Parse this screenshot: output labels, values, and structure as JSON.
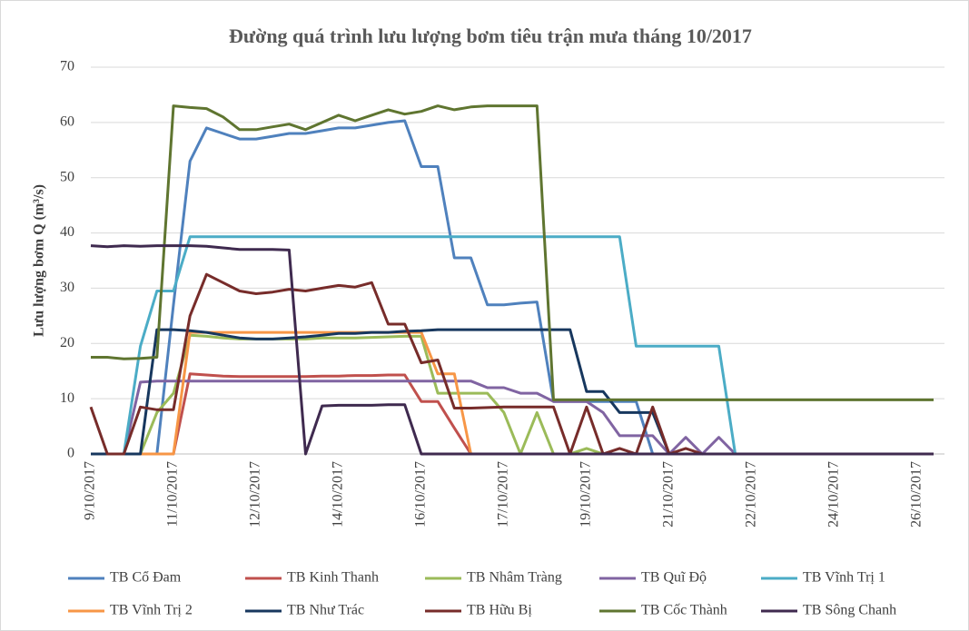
{
  "chart_data": {
    "type": "line",
    "title": "Đường quá trình lưu lượng bơm tiêu trận mưa tháng 10/2017",
    "y_label": "Lưu lượng bơm Q (m³/s)",
    "categories": [
      "9/10/2017",
      null,
      null,
      null,
      null,
      "11/10/2017",
      null,
      null,
      null,
      null,
      "12/10/2017",
      null,
      null,
      null,
      null,
      "14/10/2017",
      null,
      null,
      null,
      null,
      "16/10/2017",
      null,
      null,
      null,
      null,
      "17/10/2017",
      null,
      null,
      null,
      null,
      "19/10/2017",
      null,
      null,
      null,
      null,
      "21/10/2017",
      null,
      null,
      null,
      null,
      "22/10/2017",
      null,
      null,
      null,
      null,
      "24/10/2017",
      null,
      null,
      null,
      null,
      "26/10/2017",
      null
    ],
    "ylim": [
      0,
      70
    ],
    "yticks": [
      0,
      10,
      20,
      30,
      40,
      50,
      60,
      70
    ],
    "grid": true,
    "legend": "bottom",
    "series": [
      {
        "name": "TB Cổ Đam",
        "color": "#4f81bd",
        "values": [
          0,
          0,
          0,
          0,
          0,
          27,
          53,
          59,
          58,
          57,
          57,
          57.5,
          58,
          58,
          58.5,
          59,
          59,
          59.5,
          60,
          60.3,
          52,
          52,
          35.5,
          35.5,
          27,
          27,
          27.3,
          27.5,
          9.5,
          9.5,
          9.5,
          9.5,
          9.5,
          9.5,
          0,
          0,
          0,
          0,
          0,
          0,
          0,
          0,
          0,
          0,
          0,
          0,
          0,
          0,
          0,
          0,
          0,
          0
        ]
      },
      {
        "name": "TB Kinh Thanh",
        "color": "#c0504d",
        "values": [
          0,
          0,
          0,
          0,
          0,
          0,
          14.5,
          14.3,
          14.1,
          14,
          14,
          14,
          14,
          14,
          14.1,
          14.1,
          14.2,
          14.2,
          14.3,
          14.3,
          9.5,
          9.5,
          4.7,
          0,
          0,
          0,
          0,
          0,
          0,
          0,
          0,
          0,
          0,
          0,
          0,
          0,
          0,
          0,
          0,
          0,
          0,
          0,
          0,
          0,
          0,
          0,
          0,
          0,
          0,
          0,
          0,
          0
        ]
      },
      {
        "name": "TB Nhâm Tràng",
        "color": "#9bbb59",
        "values": [
          0,
          0,
          0,
          0,
          7.5,
          11,
          21.5,
          21.3,
          21,
          20.8,
          20.8,
          20.8,
          20.8,
          20.8,
          21,
          21,
          21,
          21.1,
          21.2,
          21.3,
          21.3,
          11,
          11,
          11,
          11,
          7.5,
          0,
          7.5,
          0,
          0,
          1,
          0,
          0,
          0,
          0,
          0,
          0,
          0,
          0,
          0,
          0,
          0,
          0,
          0,
          0,
          0,
          0,
          0,
          0,
          0,
          0,
          0
        ]
      },
      {
        "name": "TB Quĩ Độ",
        "color": "#8064a2",
        "values": [
          0,
          0,
          0,
          13,
          13.2,
          13.2,
          13.2,
          13.2,
          13.2,
          13.2,
          13.2,
          13.2,
          13.2,
          13.2,
          13.2,
          13.2,
          13.2,
          13.2,
          13.2,
          13.2,
          13.2,
          13.2,
          13.2,
          13.2,
          12,
          12,
          11,
          11,
          9.5,
          9.5,
          9.5,
          7.5,
          3.3,
          3.3,
          3.3,
          0,
          3,
          0,
          3,
          0,
          0,
          0,
          0,
          0,
          0,
          0,
          0,
          0,
          0,
          0,
          0,
          0
        ]
      },
      {
        "name": "TB Vĩnh Trị 1",
        "color": "#4bacc6",
        "values": [
          0,
          0,
          0,
          19.5,
          29.5,
          29.5,
          39.3,
          39.3,
          39.3,
          39.3,
          39.3,
          39.3,
          39.3,
          39.3,
          39.3,
          39.3,
          39.3,
          39.3,
          39.3,
          39.3,
          39.3,
          39.3,
          39.3,
          39.3,
          39.3,
          39.3,
          39.3,
          39.3,
          39.3,
          39.3,
          39.3,
          39.3,
          39.3,
          19.5,
          19.5,
          19.5,
          19.5,
          19.5,
          19.5,
          0,
          0,
          0,
          0,
          0,
          0,
          0,
          0,
          0,
          0,
          0,
          0,
          0
        ]
      },
      {
        "name": "TB Vĩnh Trị 2",
        "color": "#f79646",
        "values": [
          0,
          0,
          0,
          0,
          0,
          0,
          22,
          22,
          22,
          22,
          22,
          22,
          22,
          22,
          22,
          22,
          22,
          22,
          22,
          22,
          22,
          14.5,
          14.5,
          0,
          0,
          0,
          0,
          0,
          0,
          0,
          0,
          0,
          0,
          0,
          0,
          0,
          0,
          0,
          0,
          0,
          0,
          0,
          0,
          0,
          0,
          0,
          0,
          0,
          0,
          0,
          0,
          0
        ]
      },
      {
        "name": "TB Như Trác",
        "color": "#17375e",
        "values": [
          0,
          0,
          0,
          0,
          22.5,
          22.5,
          22.3,
          22,
          21.5,
          21,
          20.8,
          20.8,
          21,
          21.2,
          21.5,
          21.8,
          21.8,
          22,
          22,
          22.2,
          22.3,
          22.5,
          22.5,
          22.5,
          22.5,
          22.5,
          22.5,
          22.5,
          22.5,
          22.5,
          11.3,
          11.3,
          7.5,
          7.5,
          7.5,
          0,
          0,
          0,
          0,
          0,
          0,
          0,
          0,
          0,
          0,
          0,
          0,
          0,
          0,
          0,
          0,
          0
        ]
      },
      {
        "name": "TB Hữu Bị",
        "color": "#772c2a",
        "values": [
          8.5,
          0,
          0,
          8.5,
          8,
          8,
          25,
          32.5,
          31,
          29.5,
          29,
          29.3,
          29.8,
          29.5,
          30,
          30.5,
          30.2,
          31,
          23.5,
          23.5,
          16.5,
          17,
          8.3,
          8.3,
          8.4,
          8.5,
          8.5,
          8.5,
          8.5,
          0,
          8.5,
          0,
          1,
          0,
          8.5,
          0,
          1,
          0,
          0,
          0,
          0,
          0,
          0,
          0,
          0,
          0,
          0,
          0,
          0,
          0,
          0,
          0
        ]
      },
      {
        "name": "TB Cốc Thành",
        "color": "#5f7530",
        "values": [
          17.5,
          17.5,
          17.2,
          17.3,
          17.5,
          63,
          62.7,
          62.5,
          61,
          58.7,
          58.7,
          59.2,
          59.7,
          58.7,
          60,
          61.3,
          60.3,
          61.3,
          62.3,
          61.5,
          62,
          63,
          62.3,
          62.8,
          63,
          63,
          63,
          63,
          9.8,
          9.8,
          9.8,
          9.8,
          9.8,
          9.8,
          9.8,
          9.8,
          9.8,
          9.8,
          9.8,
          9.8,
          9.8,
          9.8,
          9.8,
          9.8,
          9.8,
          9.8,
          9.8,
          9.8,
          9.8,
          9.8,
          9.8,
          9.8
        ]
      },
      {
        "name": "TB Sông Chanh",
        "color": "#3f2a4f",
        "values": [
          37.7,
          37.5,
          37.7,
          37.6,
          37.7,
          37.7,
          37.7,
          37.6,
          37.3,
          37,
          37,
          37,
          36.9,
          0,
          8.7,
          8.8,
          8.8,
          8.8,
          8.9,
          8.9,
          0,
          0,
          0,
          0,
          0,
          0,
          0,
          0,
          0,
          0,
          0,
          0,
          0,
          0,
          0,
          0,
          0,
          0,
          0,
          0,
          0,
          0,
          0,
          0,
          0,
          0,
          0,
          0,
          0,
          0,
          0,
          0
        ]
      }
    ]
  }
}
